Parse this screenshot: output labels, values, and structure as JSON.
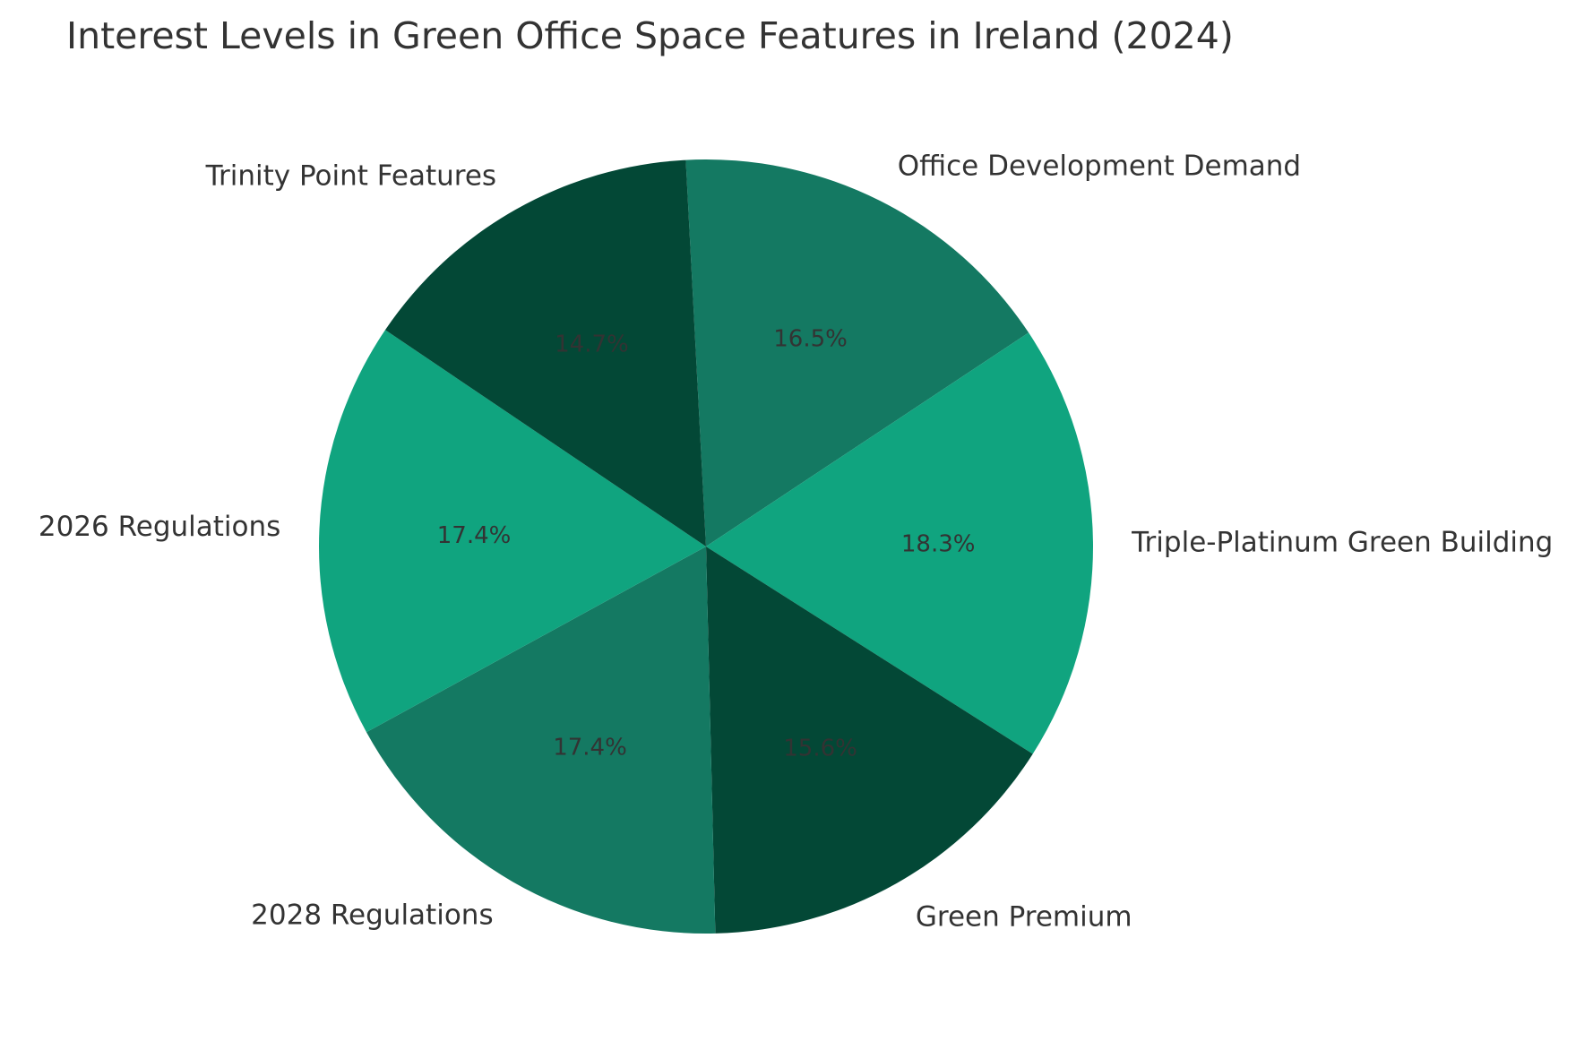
{
  "chart_data": {
    "type": "pie",
    "title": "Interest Levels in Green Office Space Features in Ireland (2024)",
    "start_angle_deg": 93,
    "direction": "clockwise",
    "slices": [
      {
        "label": "Office Development Demand",
        "percent": 16.5,
        "pct_text": "16.5%",
        "color": "#147962"
      },
      {
        "label": "Triple-Platinum Green Building",
        "percent": 18.3,
        "pct_text": "18.3%",
        "color": "#10a47f"
      },
      {
        "label": "Green Premium",
        "percent": 15.6,
        "pct_text": "15.6%",
        "color": "#034836"
      },
      {
        "label": "2028 Regulations",
        "percent": 17.4,
        "pct_text": "17.4%",
        "color": "#147962"
      },
      {
        "label": "2026 Regulations",
        "percent": 17.4,
        "pct_text": "17.4%",
        "color": "#10a47f"
      },
      {
        "label": "Trinity Point Features",
        "percent": 14.7,
        "pct_text": "14.7%",
        "color": "#034836"
      }
    ],
    "text_color": "#333333"
  }
}
